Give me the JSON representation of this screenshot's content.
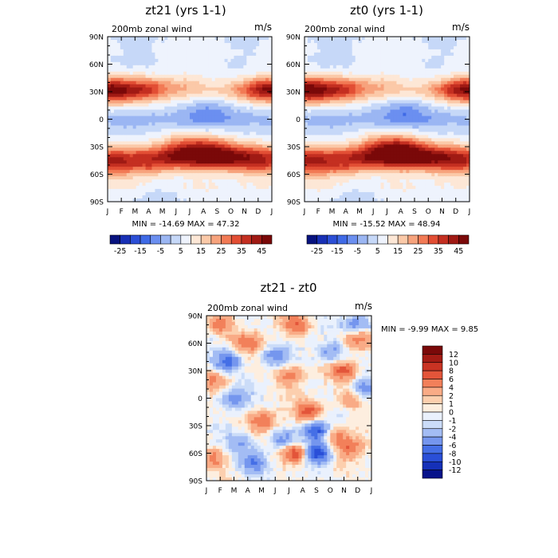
{
  "chart_data": [
    {
      "type": "heatmap",
      "title": "zt21 (yrs 1-1)",
      "subtitle": "200mb zonal wind",
      "units": "m/s",
      "stats_text": "MIN = -14.69 MAX =  47.32",
      "min": -14.69,
      "max": 47.32,
      "x_ticks": [
        "J",
        "F",
        "M",
        "A",
        "M",
        "J",
        "J",
        "A",
        "S",
        "O",
        "N",
        "D",
        "J"
      ],
      "y_ticks": [
        "90N",
        "60N",
        "30N",
        "0",
        "30S",
        "60S",
        "90S"
      ],
      "colorbar": {
        "orientation": "horizontal",
        "labels": [
          "-25",
          "-15",
          "-5",
          "5",
          "15",
          "25",
          "35",
          "45"
        ]
      },
      "features": [
        {
          "month": 0.3,
          "lat": 30,
          "value": 45
        },
        {
          "month": 11.7,
          "lat": 32,
          "value": 40
        },
        {
          "month": 3.0,
          "lat": 33,
          "value": 30
        },
        {
          "month": 6.0,
          "lat": 35,
          "value": 18
        },
        {
          "month": 7.5,
          "lat": 5,
          "value": -14
        },
        {
          "month": 6.5,
          "lat": 10,
          "value": -8
        },
        {
          "month": 1.5,
          "lat": -5,
          "value": -5
        },
        {
          "month": 9.5,
          "lat": 0,
          "value": -5
        },
        {
          "month": 7.5,
          "lat": -32,
          "value": 42
        },
        {
          "month": 5.5,
          "lat": -30,
          "value": 35
        },
        {
          "month": 9.5,
          "lat": -42,
          "value": 33
        },
        {
          "month": 0.5,
          "lat": -50,
          "value": 40
        },
        {
          "month": 11.5,
          "lat": -48,
          "value": 35
        },
        {
          "month": 3.0,
          "lat": -50,
          "value": 30
        },
        {
          "month": 6.0,
          "lat": -70,
          "value": 5
        },
        {
          "month": 2.0,
          "lat": 75,
          "value": -6
        },
        {
          "month": 10.0,
          "lat": 78,
          "value": -4
        },
        {
          "month": 4.0,
          "lat": -80,
          "value": -5
        }
      ]
    },
    {
      "type": "heatmap",
      "title": "zt0 (yrs 1-1)",
      "subtitle": "200mb zonal wind",
      "units": "m/s",
      "stats_text": "MIN = -15.52 MAX =  48.94",
      "min": -15.52,
      "max": 48.94,
      "x_ticks": [
        "J",
        "F",
        "M",
        "A",
        "M",
        "J",
        "J",
        "A",
        "S",
        "O",
        "N",
        "D",
        "J"
      ],
      "y_ticks": [
        "90N",
        "60N",
        "30N",
        "0",
        "30S",
        "60S",
        "90S"
      ],
      "colorbar": {
        "orientation": "horizontal",
        "labels": [
          "-25",
          "-15",
          "-5",
          "5",
          "15",
          "25",
          "35",
          "45"
        ]
      },
      "features": [
        {
          "month": 0.3,
          "lat": 30,
          "value": 47
        },
        {
          "month": 11.7,
          "lat": 32,
          "value": 42
        },
        {
          "month": 3.0,
          "lat": 33,
          "value": 30
        },
        {
          "month": 6.0,
          "lat": 35,
          "value": 18
        },
        {
          "month": 7.5,
          "lat": 5,
          "value": -15
        },
        {
          "month": 6.5,
          "lat": 10,
          "value": -9
        },
        {
          "month": 1.5,
          "lat": -5,
          "value": -5
        },
        {
          "month": 9.5,
          "lat": 0,
          "value": -5
        },
        {
          "month": 7.2,
          "lat": -32,
          "value": 48
        },
        {
          "month": 5.5,
          "lat": -30,
          "value": 36
        },
        {
          "month": 9.5,
          "lat": -42,
          "value": 34
        },
        {
          "month": 0.5,
          "lat": -50,
          "value": 42
        },
        {
          "month": 11.5,
          "lat": -48,
          "value": 36
        },
        {
          "month": 3.0,
          "lat": -50,
          "value": 30
        },
        {
          "month": 6.0,
          "lat": -70,
          "value": 5
        },
        {
          "month": 2.0,
          "lat": 75,
          "value": -7
        },
        {
          "month": 10.0,
          "lat": 78,
          "value": -4
        },
        {
          "month": 4.0,
          "lat": -80,
          "value": -5
        }
      ]
    },
    {
      "type": "heatmap",
      "title": "zt21 - zt0",
      "subtitle": "200mb zonal wind",
      "units": "m/s",
      "stats_text": "MIN =  -9.99 MAX =   9.85",
      "min": -9.99,
      "max": 9.85,
      "x_ticks": [
        "J",
        "F",
        "M",
        "A",
        "M",
        "J",
        "J",
        "A",
        "S",
        "O",
        "N",
        "D",
        "J"
      ],
      "y_ticks": [
        "90N",
        "60N",
        "30N",
        "0",
        "30S",
        "60S",
        "90S"
      ],
      "colorbar": {
        "orientation": "vertical",
        "labels": [
          "12",
          "10",
          "8",
          "6",
          "4",
          "2",
          "1",
          "0",
          "-1",
          "-2",
          "-4",
          "-6",
          "-8",
          "-10",
          "-12"
        ]
      },
      "features": [
        {
          "month": 8.0,
          "lat": -60,
          "value": -10
        },
        {
          "month": 8.0,
          "lat": -35,
          "value": -9
        },
        {
          "month": 6.5,
          "lat": -60,
          "value": 9
        },
        {
          "month": 7.5,
          "lat": -15,
          "value": 7
        },
        {
          "month": 6.5,
          "lat": 80,
          "value": 6
        },
        {
          "month": 1.5,
          "lat": 40,
          "value": -7
        },
        {
          "month": 3.0,
          "lat": 60,
          "value": 5
        },
        {
          "month": 1.0,
          "lat": 80,
          "value": 5
        },
        {
          "month": 4.0,
          "lat": -25,
          "value": 6
        },
        {
          "month": 6.0,
          "lat": 25,
          "value": 5
        },
        {
          "month": 10.0,
          "lat": 30,
          "value": 6
        },
        {
          "month": 11.0,
          "lat": 65,
          "value": 5
        },
        {
          "month": 11.0,
          "lat": 80,
          "value": -6
        },
        {
          "month": 9.5,
          "lat": -40,
          "value": 5
        },
        {
          "month": 10.5,
          "lat": -55,
          "value": 5
        },
        {
          "month": 2.0,
          "lat": 0,
          "value": -5
        },
        {
          "month": 5.0,
          "lat": 45,
          "value": -5
        },
        {
          "month": 3.5,
          "lat": -70,
          "value": -6
        },
        {
          "month": 5.5,
          "lat": -45,
          "value": -5
        },
        {
          "month": 9.0,
          "lat": 50,
          "value": -5
        },
        {
          "month": 0.5,
          "lat": 20,
          "value": 4
        },
        {
          "month": 11.5,
          "lat": 10,
          "value": -5
        },
        {
          "month": 0.5,
          "lat": -65,
          "value": 5
        },
        {
          "month": 2.5,
          "lat": -50,
          "value": -4
        },
        {
          "month": 10.5,
          "lat": 0,
          "value": 4
        }
      ]
    }
  ]
}
